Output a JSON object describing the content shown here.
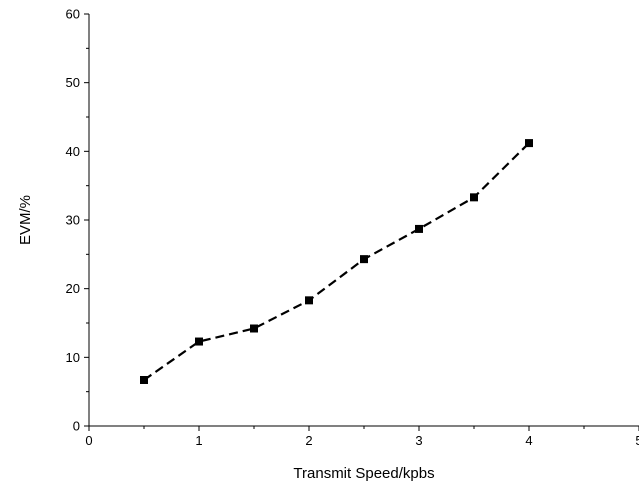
{
  "chart_data": {
    "type": "line",
    "title": "",
    "xlabel": "Transmit Speed/kpbs",
    "ylabel": "EVM/%",
    "xlim": [
      0,
      5
    ],
    "ylim": [
      0,
      60
    ],
    "x_ticks": [
      "0",
      "1",
      "2",
      "3",
      "4",
      "5"
    ],
    "y_ticks": [
      "0",
      "10",
      "20",
      "30",
      "40",
      "50",
      "60"
    ],
    "grid": false,
    "legend": "none",
    "series": [
      {
        "x": [
          0.5,
          1.0,
          1.5,
          2.0,
          2.5,
          3.0,
          3.5,
          4.0
        ],
        "y": [
          6.7,
          12.3,
          14.2,
          18.3,
          24.3,
          28.7,
          33.3,
          41.2
        ],
        "line_style": "dashed",
        "marker": "square",
        "color": "#000000"
      }
    ]
  }
}
